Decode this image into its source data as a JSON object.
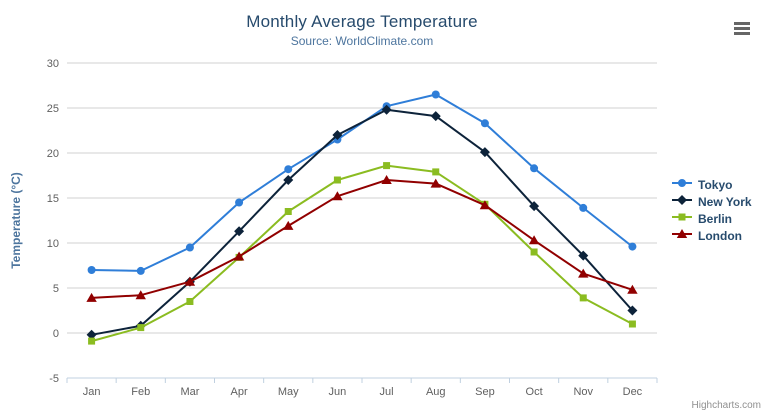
{
  "chart_data": {
    "type": "line",
    "title": "Monthly Average Temperature",
    "subtitle": "Source: WorldClimate.com",
    "xlabel": "",
    "ylabel": "Temperature (°C)",
    "categories": [
      "Jan",
      "Feb",
      "Mar",
      "Apr",
      "May",
      "Jun",
      "Jul",
      "Aug",
      "Sep",
      "Oct",
      "Nov",
      "Dec"
    ],
    "yticks": [
      -5,
      0,
      5,
      10,
      15,
      20,
      25,
      30
    ],
    "ylim": [
      -5,
      30
    ],
    "grid": true,
    "legend_position": "right",
    "series": [
      {
        "name": "Tokyo",
        "color": "#2f7ed8",
        "marker": "circle",
        "values": [
          7.0,
          6.9,
          9.5,
          14.5,
          18.2,
          21.5,
          25.2,
          26.5,
          23.3,
          18.3,
          13.9,
          9.6
        ]
      },
      {
        "name": "New York",
        "color": "#0d233a",
        "marker": "diamond",
        "values": [
          -0.2,
          0.8,
          5.7,
          11.3,
          17.0,
          22.0,
          24.8,
          24.1,
          20.1,
          14.1,
          8.6,
          2.5
        ]
      },
      {
        "name": "Berlin",
        "color": "#8bbc21",
        "marker": "square",
        "values": [
          -0.9,
          0.6,
          3.5,
          8.4,
          13.5,
          17.0,
          18.6,
          17.9,
          14.3,
          9.0,
          3.9,
          1.0
        ]
      },
      {
        "name": "London",
        "color": "#910000",
        "marker": "triangle",
        "values": [
          3.9,
          4.2,
          5.7,
          8.5,
          11.9,
          15.2,
          17.0,
          16.6,
          14.2,
          10.3,
          6.6,
          4.8
        ]
      }
    ]
  },
  "colors": {
    "title": "#274b6d",
    "subtitle": "#4d759e",
    "yaxis_title": "#4d759e",
    "axis_labels": "#606060",
    "grid": "#d2d2d2",
    "axis_line": "#c0d0e0",
    "credits": "#909090",
    "menu_icon": "#666666"
  },
  "icons": {
    "hamburger": "≡"
  },
  "credits": {
    "label": "Highcharts.com"
  }
}
